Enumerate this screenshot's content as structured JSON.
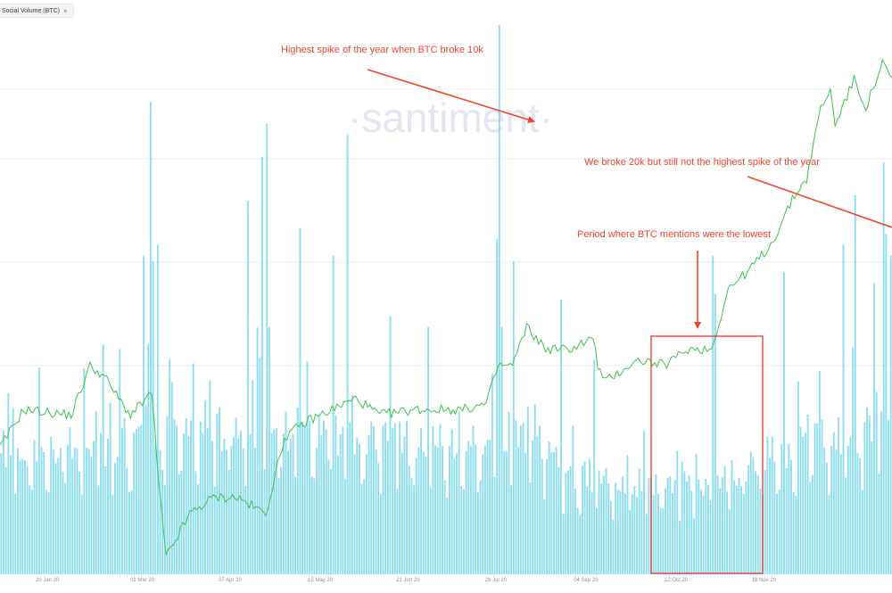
{
  "legend": {
    "label": "Social Volume (BTC)",
    "close_icon": "×"
  },
  "watermark": "·santiment·",
  "colors": {
    "bars": "#8fdef0",
    "price_line": "#3cc24a",
    "annotation": "#f0442c",
    "grid": "#eceef2"
  },
  "annotations": {
    "spike_note": "Highest spike of the year when BTC broke 10k",
    "twentyk_note": "We broke 20k but still not the highest spike of the year",
    "lowest_note": "Period where BTC mentions were the lowest"
  },
  "chart_data": {
    "type": "bar",
    "title": "",
    "xlabel": "",
    "ylabel": "",
    "x_ticks": [
      "20 Jan 20",
      "01 Mar 20",
      "07 Apr 20",
      "15 May 20",
      "21 Jun 20",
      "28 Jul 20",
      "04 Sep 20",
      "12 Oct 20",
      "18 Nov 20"
    ],
    "grid": true,
    "series": [
      {
        "kind": "bar",
        "weekly_pattern": [
          1.0,
          1.02,
          0.97,
          1.05,
          0.94,
          0.72,
          0.66
        ],
        "baseline_anchors": [
          [
            0,
            0.23
          ],
          [
            30,
            0.23
          ],
          [
            55,
            0.24
          ],
          [
            62,
            0.26
          ],
          [
            100,
            0.26
          ],
          [
            120,
            0.27
          ],
          [
            160,
            0.25
          ],
          [
            200,
            0.24
          ],
          [
            220,
            0.25
          ],
          [
            240,
            0.18
          ],
          [
            290,
            0.16
          ],
          [
            320,
            0.21
          ],
          [
            345,
            0.25
          ],
          [
            375,
            0.27
          ]
        ],
        "spikes": [
          [
            0,
            0.22
          ],
          [
            50,
            0.41
          ],
          [
            60,
            0.58
          ],
          [
            62,
            0.42
          ],
          [
            63,
            0.86
          ],
          [
            64,
            0.57
          ],
          [
            66,
            0.6
          ],
          [
            72,
            0.35
          ],
          [
            104,
            0.68
          ],
          [
            108,
            0.45
          ],
          [
            110,
            0.76
          ],
          [
            112,
            0.82
          ],
          [
            113,
            0.45
          ],
          [
            126,
            0.63
          ],
          [
            140,
            0.58
          ],
          [
            146,
            0.8
          ],
          [
            164,
            0.47
          ],
          [
            180,
            0.45
          ],
          [
            209,
            0.61
          ],
          [
            210,
            1.0
          ],
          [
            211,
            0.45
          ],
          [
            216,
            0.57
          ],
          [
            236,
            0.5
          ],
          [
            250,
            0.39
          ],
          [
            300,
            0.58
          ],
          [
            301,
            0.51
          ],
          [
            330,
            0.55
          ],
          [
            355,
            0.6
          ],
          [
            360,
            0.69
          ],
          [
            368,
            0.53
          ],
          [
            372,
            0.75
          ],
          [
            373,
            0.62
          ],
          [
            375,
            0.58
          ]
        ],
        "days": 376
      },
      {
        "kind": "line",
        "anchors": [
          [
            0,
            0.23
          ],
          [
            10,
            0.3
          ],
          [
            30,
            0.29
          ],
          [
            38,
            0.38
          ],
          [
            44,
            0.36
          ],
          [
            50,
            0.32
          ],
          [
            55,
            0.29
          ],
          [
            64,
            0.33
          ],
          [
            67,
            0.16
          ],
          [
            70,
            0.03
          ],
          [
            80,
            0.11
          ],
          [
            90,
            0.14
          ],
          [
            100,
            0.14
          ],
          [
            112,
            0.11
          ],
          [
            120,
            0.25
          ],
          [
            130,
            0.28
          ],
          [
            150,
            0.32
          ],
          [
            160,
            0.29
          ],
          [
            175,
            0.3
          ],
          [
            195,
            0.3
          ],
          [
            205,
            0.31
          ],
          [
            210,
            0.38
          ],
          [
            216,
            0.38
          ],
          [
            222,
            0.45
          ],
          [
            230,
            0.41
          ],
          [
            240,
            0.41
          ],
          [
            250,
            0.43
          ],
          [
            252,
            0.38
          ],
          [
            255,
            0.35
          ],
          [
            265,
            0.38
          ],
          [
            270,
            0.39
          ],
          [
            280,
            0.38
          ],
          [
            290,
            0.41
          ],
          [
            300,
            0.41
          ],
          [
            307,
            0.52
          ],
          [
            315,
            0.55
          ],
          [
            325,
            0.6
          ],
          [
            335,
            0.69
          ],
          [
            340,
            0.72
          ],
          [
            346,
            0.85
          ],
          [
            350,
            0.88
          ],
          [
            352,
            0.82
          ],
          [
            357,
            0.87
          ],
          [
            360,
            0.9
          ],
          [
            365,
            0.85
          ],
          [
            372,
            0.93
          ],
          [
            376,
            0.9
          ]
        ]
      }
    ]
  }
}
